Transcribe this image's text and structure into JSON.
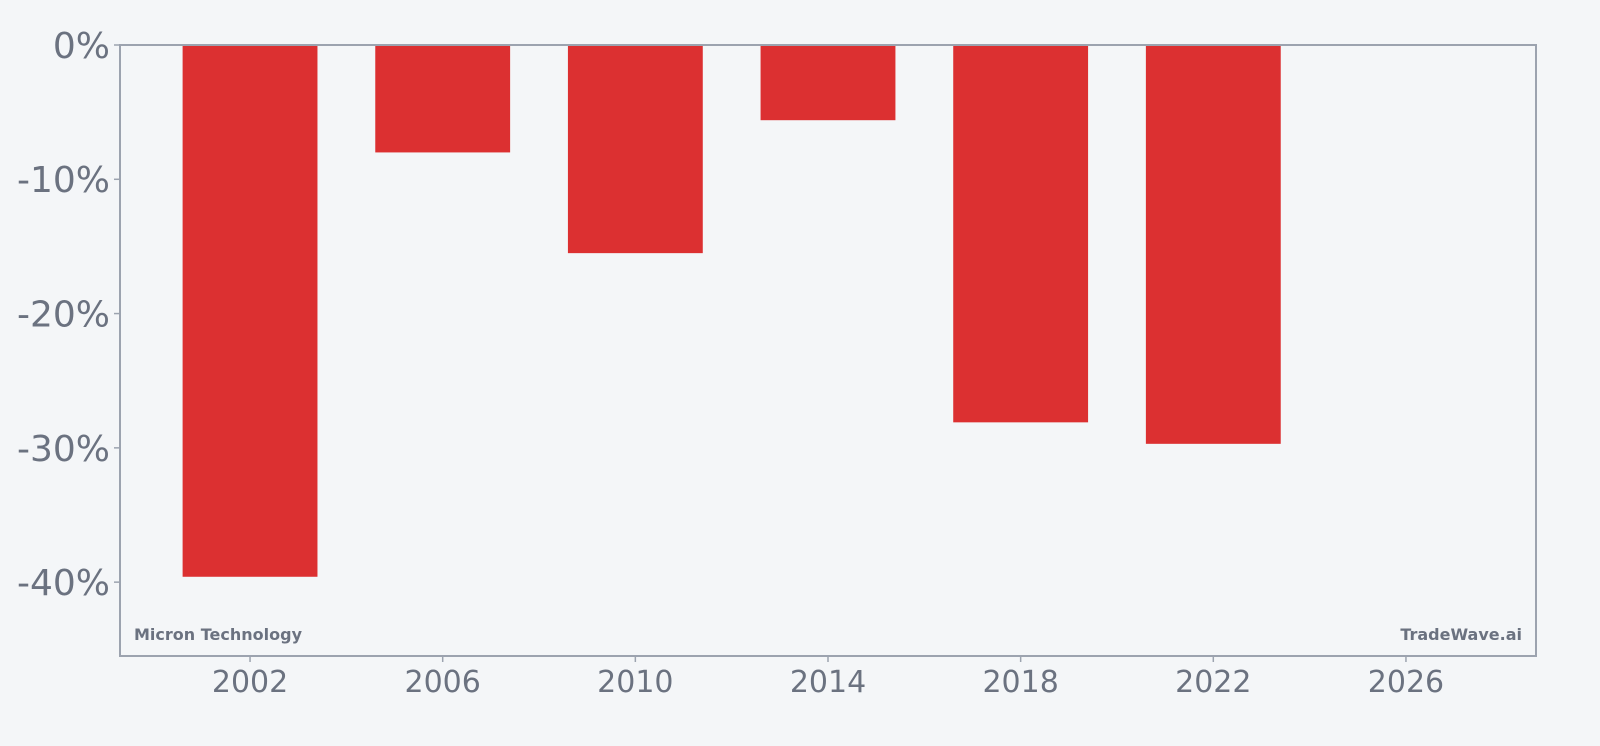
{
  "colors": {
    "background": "#f4f6f8",
    "bar": "#dc3031",
    "axis": "#9ca3af",
    "text": "#6b7280"
  },
  "watermark": {
    "left": "Micron Technology",
    "right": "TradeWave.ai"
  },
  "chart_data": {
    "type": "bar",
    "x": [
      2002,
      2006,
      2010,
      2014,
      2018,
      2022
    ],
    "values": [
      -39.6,
      -8.0,
      -15.5,
      -5.6,
      -28.1,
      -29.7
    ],
    "xlim": [
      1999.3,
      2028.7
    ],
    "ylim": [
      -45.5,
      0
    ],
    "x_ticks": [
      "2002",
      "2006",
      "2010",
      "2014",
      "2018",
      "2022",
      "2026"
    ],
    "y_ticks": [
      "0%",
      "-10%",
      "-20%",
      "-30%",
      "-40%"
    ],
    "title": "",
    "xlabel": "",
    "ylabel": "",
    "grid": false,
    "legend": "none"
  }
}
